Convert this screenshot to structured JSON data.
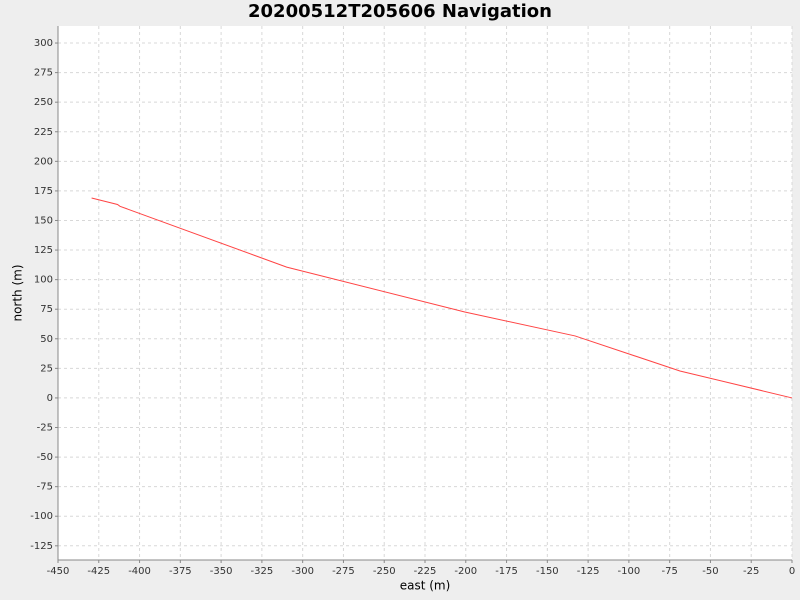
{
  "chart_data": {
    "type": "line",
    "title": "20200512T205606 Navigation",
    "x_label": "east (m)",
    "y_label": "north (m)",
    "x": [
      -429.4,
      -413.5,
      -412,
      -309.8,
      -200.6,
      -133,
      -68.7,
      0
    ],
    "values": [
      169,
      163.5,
      162,
      110.6,
      72.6,
      52.4,
      22.8,
      0
    ],
    "color": "#ff4444",
    "xlim": [
      -450,
      0
    ],
    "xticks": [
      -450,
      -425,
      -400,
      -375,
      -350,
      -325,
      -300,
      -275,
      -250,
      -225,
      -200,
      -175,
      -150,
      -125,
      -100,
      -75,
      -50,
      -25,
      0
    ],
    "ylim": [
      -137,
      314.4
    ],
    "yticks": [
      -125,
      -100,
      -75,
      -50,
      -25,
      0,
      25,
      50,
      75,
      100,
      125,
      150,
      175,
      200,
      225,
      250,
      275,
      300
    ],
    "grid": true
  }
}
